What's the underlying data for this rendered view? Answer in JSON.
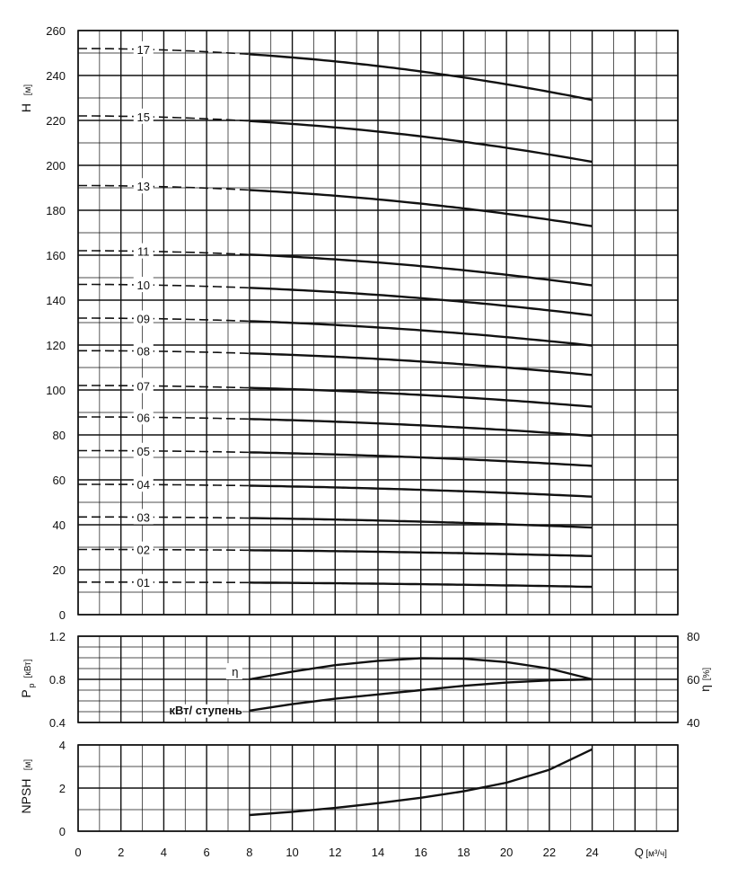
{
  "chart_data": {
    "type": "line",
    "x": {
      "label": "Q",
      "unit": "[м³/ч]",
      "ticks": [
        0,
        2,
        4,
        6,
        8,
        10,
        12,
        14,
        16,
        18,
        20,
        22,
        24
      ],
      "lim": [
        0,
        28
      ],
      "tick_labels": [
        "0",
        "2",
        "4",
        "6",
        "8",
        "10",
        "12",
        "14",
        "16",
        "18",
        "20",
        "22",
        "24"
      ]
    },
    "panels": {
      "head": {
        "ylabel": "H",
        "yunit": "[м]",
        "ylim": [
          0,
          260
        ],
        "yticks": [
          0,
          20,
          40,
          60,
          80,
          100,
          120,
          140,
          160,
          180,
          200,
          220,
          240,
          260
        ],
        "ytick_labels": [
          "0",
          "20",
          "40",
          "60",
          "80",
          "100",
          "120",
          "140",
          "160",
          "180",
          "200",
          "220",
          "240",
          "260"
        ],
        "solid_range": [
          8,
          24
        ],
        "dashed_range": [
          0,
          8
        ],
        "series": [
          {
            "name": "01",
            "h0": 14.5,
            "a": 0.0037
          },
          {
            "name": "02",
            "h0": 29,
            "a": 0.0051
          },
          {
            "name": "03",
            "h0": 43.5,
            "a": 0.0082
          },
          {
            "name": "04",
            "h0": 58,
            "a": 0.0095
          },
          {
            "name": "05",
            "h0": 73,
            "a": 0.0118
          },
          {
            "name": "06",
            "h0": 88,
            "a": 0.0146
          },
          {
            "name": "07",
            "h0": 102,
            "a": 0.0164
          },
          {
            "name": "08",
            "h0": 117.5,
            "a": 0.0188
          },
          {
            "name": "09",
            "h0": 132,
            "a": 0.0212
          },
          {
            "name": "10",
            "h0": 147,
            "a": 0.0239
          },
          {
            "name": "11",
            "h0": 162,
            "a": 0.0268
          },
          {
            "name": "13",
            "h0": 191,
            "a": 0.0314
          },
          {
            "name": "15",
            "h0": 222,
            "a": 0.0355
          },
          {
            "name": "17",
            "h0": 252,
            "a": 0.0398
          }
        ]
      },
      "power": {
        "ylabel": "P",
        "ysub": "р",
        "yunit": "[кВт]",
        "ylim": [
          0.4,
          1.2
        ],
        "yticks": [
          0.4,
          0.8,
          1.2
        ],
        "ytick_labels": [
          "0.4",
          "0.8",
          "1.2"
        ],
        "y2label": "η",
        "y2unit": "[%]",
        "y2lim": [
          40,
          80
        ],
        "y2ticks": [
          40,
          60,
          80
        ],
        "y2tick_labels": [
          "40",
          "60",
          "80"
        ],
        "series": [
          {
            "name": "η",
            "axis": "right",
            "x": [
              8,
              10,
              12,
              14,
              16,
              18,
              20,
              22,
              24
            ],
            "y": [
              60,
              63.6,
              66.6,
              68.6,
              69.8,
              69.6,
              68,
              65,
              60
            ]
          },
          {
            "name": "кВт/ ступень",
            "axis": "left",
            "x": [
              8,
              10,
              12,
              14,
              16,
              18,
              20,
              22,
              24
            ],
            "y": [
              0.51,
              0.57,
              0.62,
              0.66,
              0.7,
              0.74,
              0.77,
              0.79,
              0.8
            ]
          }
        ]
      },
      "npsh": {
        "ylabel": "NPSH",
        "yunit": "[м]",
        "ylim": [
          0,
          4
        ],
        "yticks": [
          0,
          2,
          4
        ],
        "ytick_labels": [
          "0",
          "2",
          "4"
        ],
        "series": [
          {
            "name": "NPSH",
            "x": [
              8,
              10,
              12,
              14,
              16,
              18,
              20,
              22,
              24
            ],
            "y": [
              0.75,
              0.9,
              1.08,
              1.3,
              1.55,
              1.85,
              2.25,
              2.85,
              3.8
            ]
          }
        ]
      }
    }
  }
}
